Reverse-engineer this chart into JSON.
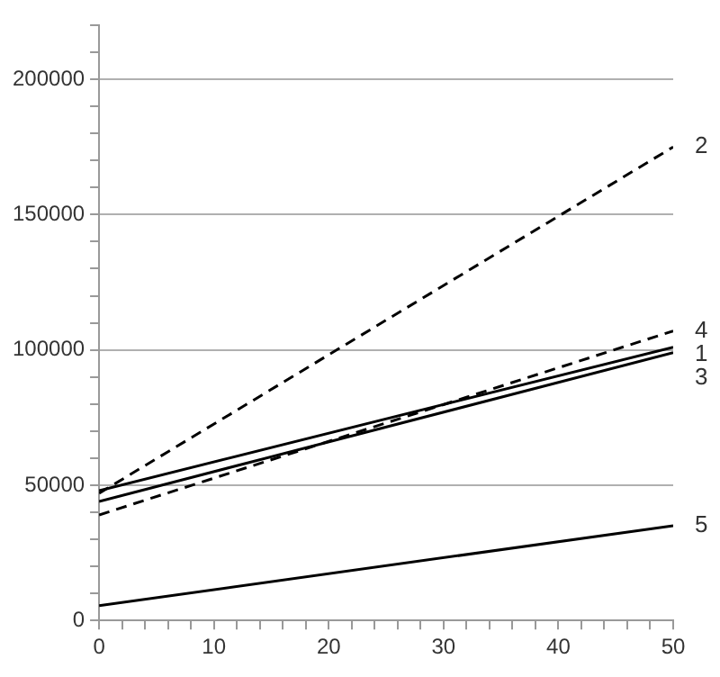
{
  "chart_data": {
    "type": "line",
    "x": [
      0,
      50
    ],
    "series": [
      {
        "name": "1",
        "color": "#000000",
        "line_style": "solid",
        "values": [
          48000,
          101000
        ]
      },
      {
        "name": "2",
        "color": "#000000",
        "line_style": "dashed",
        "values": [
          47000,
          175000
        ]
      },
      {
        "name": "3",
        "color": "#000000",
        "line_style": "solid",
        "values": [
          44000,
          99000
        ]
      },
      {
        "name": "4",
        "color": "#000000",
        "line_style": "dashed",
        "values": [
          39000,
          107000
        ]
      },
      {
        "name": "5",
        "color": "#000000",
        "line_style": "solid",
        "values": [
          5500,
          35000
        ]
      }
    ],
    "xlim": [
      0,
      50
    ],
    "ylim": [
      0,
      220000
    ],
    "xticks": [
      0,
      {
        "value": 2,
        "label": null
      },
      {
        "value": 4,
        "label": null
      },
      {
        "value": 6,
        "label": null
      },
      {
        "value": 8,
        "label": null
      },
      10,
      {
        "value": 12,
        "label": null
      },
      {
        "value": 14,
        "label": null
      },
      {
        "value": 16,
        "label": null
      },
      {
        "value": 18,
        "label": null
      },
      20,
      {
        "value": 22,
        "label": null
      },
      {
        "value": 24,
        "label": null
      },
      {
        "value": 26,
        "label": null
      },
      {
        "value": 28,
        "label": null
      },
      30,
      {
        "value": 32,
        "label": null
      },
      {
        "value": 34,
        "label": null
      },
      {
        "value": 36,
        "label": null
      },
      {
        "value": 38,
        "label": null
      },
      40,
      {
        "value": 42,
        "label": null
      },
      {
        "value": 44,
        "label": null
      },
      {
        "value": 46,
        "label": null
      },
      {
        "value": 48,
        "label": null
      },
      50
    ],
    "yticks": [
      0,
      {
        "value": 10000,
        "label": null
      },
      {
        "value": 20000,
        "label": null
      },
      {
        "value": 30000,
        "label": null
      },
      {
        "value": 40000,
        "label": null
      },
      50000,
      {
        "value": 60000,
        "label": null
      },
      {
        "value": 70000,
        "label": null
      },
      {
        "value": 80000,
        "label": null
      },
      {
        "value": 90000,
        "label": null
      },
      100000,
      {
        "value": 110000,
        "label": null
      },
      {
        "value": 120000,
        "label": null
      },
      {
        "value": 130000,
        "label": null
      },
      {
        "value": 140000,
        "label": null
      },
      150000,
      {
        "value": 160000,
        "label": null
      },
      {
        "value": 170000,
        "label": null
      },
      {
        "value": 180000,
        "label": null
      },
      {
        "value": 190000,
        "label": null
      },
      200000,
      {
        "value": 210000,
        "label": null
      },
      {
        "value": 220000,
        "label": null
      }
    ],
    "grid": "y",
    "legend": false,
    "marker": "none"
  }
}
